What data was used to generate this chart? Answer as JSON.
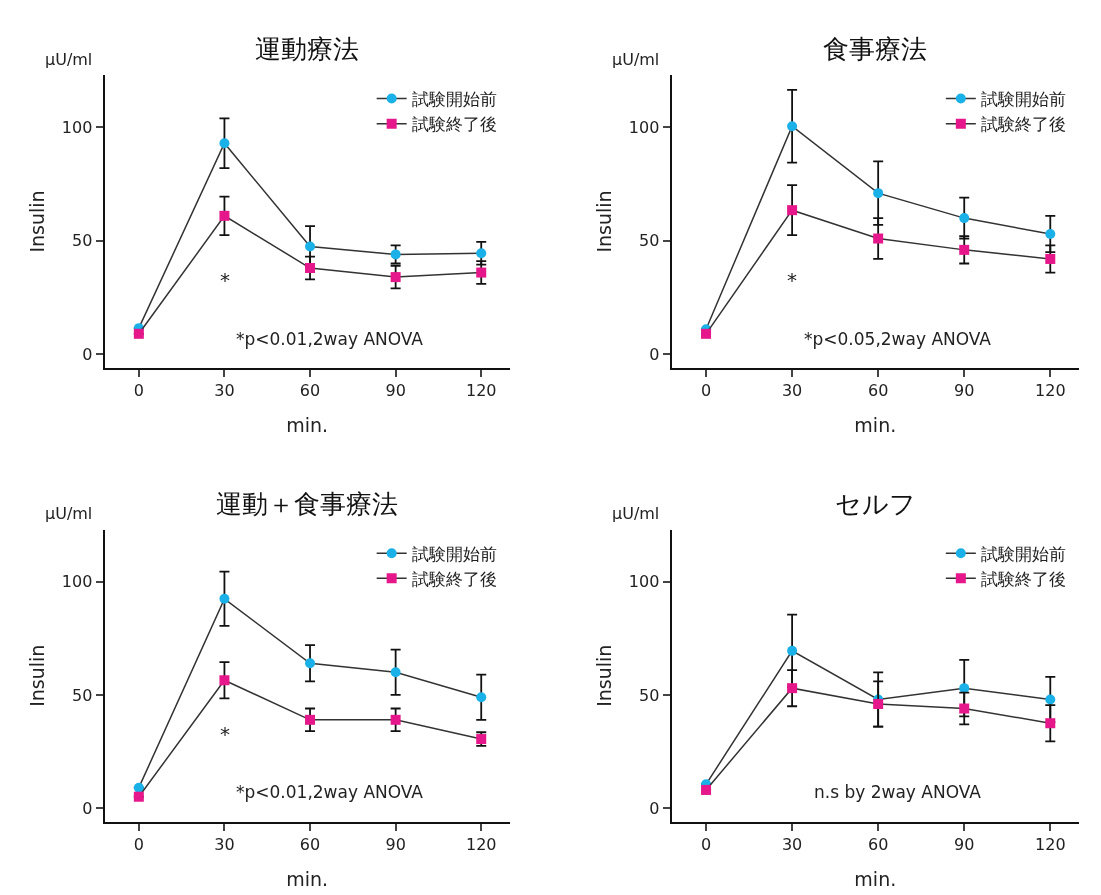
{
  "chart_data": [
    {
      "type": "line",
      "title": "運動療法",
      "ylabel": "Insulin",
      "xlabel": "min.",
      "x": [
        0,
        30,
        60,
        90,
        120
      ],
      "xlim": [
        -12,
        130
      ],
      "xticks": [
        0,
        30,
        60,
        90,
        120
      ],
      "ylim": [
        -6,
        123
      ],
      "yticks": [
        0,
        50,
        100
      ],
      "legend": "top right",
      "line_style": "solid",
      "annotations": [
        "μU/ml",
        "*",
        "*p<0.01,2way ANOVA"
      ],
      "series": [
        {
          "name": "試験開始前",
          "color": "#1ab0e8",
          "marker": "circle",
          "values": [
            11.5,
            93,
            47.5,
            44,
            44.5
          ],
          "errors": [
            null,
            11,
            9,
            4,
            5
          ]
        },
        {
          "name": "試験終了後",
          "color": "#e5178a",
          "marker": "square",
          "values": [
            9,
            61,
            38,
            34,
            36
          ],
          "errors": [
            null,
            8.5,
            5,
            5,
            5
          ]
        }
      ]
    },
    {
      "type": "line",
      "title": "食事療法",
      "ylabel": "Insulin",
      "xlabel": "min.",
      "x": [
        0,
        30,
        60,
        90,
        120
      ],
      "xlim": [
        -12,
        130
      ],
      "xticks": [
        0,
        30,
        60,
        90,
        120
      ],
      "ylim": [
        -6,
        123
      ],
      "yticks": [
        0,
        50,
        100
      ],
      "legend": "top right",
      "line_style": "solid",
      "annotations": [
        "μU/ml",
        "*",
        "*p<0.05,2way ANOVA"
      ],
      "series": [
        {
          "name": "試験開始前",
          "color": "#1ab0e8",
          "marker": "circle",
          "values": [
            11,
            100.5,
            71,
            60,
            53
          ],
          "errors": [
            null,
            16,
            14,
            9,
            8
          ]
        },
        {
          "name": "試験終了後",
          "color": "#e5178a",
          "marker": "square",
          "values": [
            9,
            63.5,
            51,
            46,
            42
          ],
          "errors": [
            null,
            11,
            9,
            6,
            6
          ]
        }
      ]
    },
    {
      "type": "line",
      "title": "運動＋食事療法",
      "ylabel": "Insulin",
      "xlabel": "min.",
      "x": [
        0,
        30,
        60,
        90,
        120
      ],
      "xlim": [
        -12,
        130
      ],
      "xticks": [
        0,
        30,
        60,
        90,
        120
      ],
      "ylim": [
        -6,
        123
      ],
      "yticks": [
        0,
        50,
        100
      ],
      "legend": "top right",
      "line_style": "solid",
      "annotations": [
        "μU/ml",
        "*",
        "*p<0.01,2way ANOVA"
      ],
      "series": [
        {
          "name": "試験開始前",
          "color": "#1ab0e8",
          "marker": "circle",
          "values": [
            9,
            92.5,
            64,
            60,
            49
          ],
          "errors": [
            null,
            12,
            8,
            10,
            10
          ]
        },
        {
          "name": "試験終了後",
          "color": "#e5178a",
          "marker": "square",
          "values": [
            5,
            56.5,
            39,
            39,
            30.5
          ],
          "errors": [
            null,
            8,
            5,
            5,
            3
          ]
        }
      ]
    },
    {
      "type": "line",
      "title": "セルフ",
      "ylabel": "Insulin",
      "xlabel": "min.",
      "x": [
        0,
        30,
        60,
        90,
        120
      ],
      "xlim": [
        -12,
        130
      ],
      "xticks": [
        0,
        30,
        60,
        90,
        120
      ],
      "ylim": [
        -6,
        123
      ],
      "yticks": [
        0,
        50,
        100
      ],
      "legend": "top right",
      "line_style": "solid",
      "annotations": [
        "μU/ml",
        "n.s by 2way ANOVA"
      ],
      "series": [
        {
          "name": "試験開始前",
          "color": "#1ab0e8",
          "marker": "circle",
          "values": [
            10.5,
            69.5,
            48,
            53,
            48
          ],
          "errors": [
            null,
            16,
            12,
            12.5,
            10
          ]
        },
        {
          "name": "試験終了後",
          "color": "#e5178a",
          "marker": "square",
          "values": [
            8,
            53,
            46,
            44,
            37.5
          ],
          "errors": [
            null,
            8,
            10,
            7,
            8
          ]
        }
      ]
    }
  ]
}
